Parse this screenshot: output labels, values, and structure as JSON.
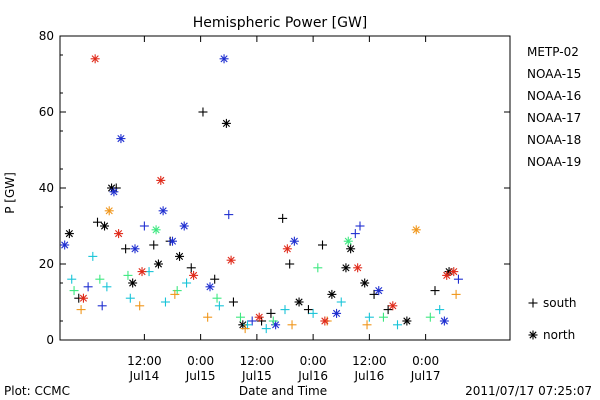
{
  "chart_data": {
    "type": "scatter",
    "title": "Hemispheric Power [GW]",
    "ylabel": "P [GW]",
    "xlabel": "Date and Time",
    "ylim": [
      0,
      80
    ],
    "yticks": [
      0,
      20,
      40,
      60,
      80
    ],
    "y_tick_labels": [
      "0",
      "20",
      "40",
      "60",
      "80"
    ],
    "xlim": [
      "2011-07-13T18:00",
      "2011-07-17T18:00"
    ],
    "x_ticks": [
      {
        "t": "2011-07-14T12:00",
        "time": "12:00",
        "date": "Jul14"
      },
      {
        "t": "2011-07-15T00:00",
        "time": "0:00",
        "date": "Jul15"
      },
      {
        "t": "2011-07-15T12:00",
        "time": "12:00",
        "date": "Jul15"
      },
      {
        "t": "2011-07-16T00:00",
        "time": "0:00",
        "date": "Jul16"
      },
      {
        "t": "2011-07-16T12:00",
        "time": "12:00",
        "date": "Jul16"
      },
      {
        "t": "2011-07-17T00:00",
        "time": "0:00",
        "date": "Jul17"
      }
    ],
    "grid": false,
    "legend_position": "right",
    "marker_legend": [
      {
        "symbol": "+",
        "label": "south"
      },
      {
        "symbol": "*",
        "label": "north"
      }
    ],
    "footer_left": "Plot: CCMC",
    "footer_right": "2011/07/17 07:25:07",
    "series": [
      {
        "name": "METP-02",
        "color": "#000000",
        "points": [
          {
            "t": "2011-07-13T20:00",
            "v": 28,
            "m": "*"
          },
          {
            "t": "2011-07-13T22:00",
            "v": 11,
            "m": "+"
          },
          {
            "t": "2011-07-14T02:00",
            "v": 31,
            "m": "+"
          },
          {
            "t": "2011-07-14T03:30",
            "v": 30,
            "m": "*"
          },
          {
            "t": "2011-07-14T05:00",
            "v": 40,
            "m": "*"
          },
          {
            "t": "2011-07-14T06:00",
            "v": 40,
            "m": "+"
          },
          {
            "t": "2011-07-14T08:00",
            "v": 24,
            "m": "+"
          },
          {
            "t": "2011-07-14T09:30",
            "v": 15,
            "m": "*"
          },
          {
            "t": "2011-07-14T14:00",
            "v": 25,
            "m": "+"
          },
          {
            "t": "2011-07-14T15:00",
            "v": 20,
            "m": "*"
          },
          {
            "t": "2011-07-14T17:30",
            "v": 26,
            "m": "+"
          },
          {
            "t": "2011-07-14T19:30",
            "v": 22,
            "m": "*"
          },
          {
            "t": "2011-07-14T22:00",
            "v": 19,
            "m": "+"
          },
          {
            "t": "2011-07-15T00:30",
            "v": 60,
            "m": "+"
          },
          {
            "t": "2011-07-15T03:00",
            "v": 16,
            "m": "+"
          },
          {
            "t": "2011-07-15T05:30",
            "v": 57,
            "m": "*"
          },
          {
            "t": "2011-07-15T07:00",
            "v": 10,
            "m": "+"
          },
          {
            "t": "2011-07-15T09:00",
            "v": 4,
            "m": "*"
          },
          {
            "t": "2011-07-15T13:00",
            "v": 5,
            "m": "+"
          },
          {
            "t": "2011-07-15T15:00",
            "v": 7,
            "m": "+"
          },
          {
            "t": "2011-07-15T17:30",
            "v": 32,
            "m": "+"
          },
          {
            "t": "2011-07-15T19:00",
            "v": 20,
            "m": "+"
          },
          {
            "t": "2011-07-15T21:00",
            "v": 10,
            "m": "*"
          },
          {
            "t": "2011-07-15T23:00",
            "v": 8,
            "m": "+"
          },
          {
            "t": "2011-07-16T02:00",
            "v": 25,
            "m": "+"
          },
          {
            "t": "2011-07-16T04:00",
            "v": 12,
            "m": "*"
          },
          {
            "t": "2011-07-16T07:00",
            "v": 19,
            "m": "*"
          },
          {
            "t": "2011-07-16T08:00",
            "v": 24,
            "m": "*"
          },
          {
            "t": "2011-07-16T11:00",
            "v": 15,
            "m": "*"
          },
          {
            "t": "2011-07-16T13:00",
            "v": 12,
            "m": "+"
          },
          {
            "t": "2011-07-16T16:00",
            "v": 8,
            "m": "+"
          },
          {
            "t": "2011-07-16T20:00",
            "v": 5,
            "m": "*"
          },
          {
            "t": "2011-07-17T02:00",
            "v": 13,
            "m": "+"
          },
          {
            "t": "2011-07-17T05:00",
            "v": 18,
            "m": "*"
          }
        ]
      },
      {
        "name": "NOAA-15",
        "color": "#1f2fd0",
        "points": [
          {
            "t": "2011-07-13T19:00",
            "v": 25,
            "m": "*"
          },
          {
            "t": "2011-07-14T00:00",
            "v": 14,
            "m": "+"
          },
          {
            "t": "2011-07-14T03:00",
            "v": 9,
            "m": "+"
          },
          {
            "t": "2011-07-14T05:30",
            "v": 39,
            "m": "*"
          },
          {
            "t": "2011-07-14T07:00",
            "v": 53,
            "m": "*"
          },
          {
            "t": "2011-07-14T10:00",
            "v": 24,
            "m": "*"
          },
          {
            "t": "2011-07-14T12:00",
            "v": 30,
            "m": "+"
          },
          {
            "t": "2011-07-14T16:00",
            "v": 34,
            "m": "*"
          },
          {
            "t": "2011-07-14T18:00",
            "v": 26,
            "m": "*"
          },
          {
            "t": "2011-07-14T20:30",
            "v": 30,
            "m": "*"
          },
          {
            "t": "2011-07-15T02:00",
            "v": 14,
            "m": "*"
          },
          {
            "t": "2011-07-15T05:00",
            "v": 74,
            "m": "*"
          },
          {
            "t": "2011-07-15T06:00",
            "v": 33,
            "m": "+"
          },
          {
            "t": "2011-07-15T11:00",
            "v": 5,
            "m": "+"
          },
          {
            "t": "2011-07-15T16:00",
            "v": 4,
            "m": "*"
          },
          {
            "t": "2011-07-15T20:00",
            "v": 26,
            "m": "*"
          },
          {
            "t": "2011-07-16T05:00",
            "v": 7,
            "m": "*"
          },
          {
            "t": "2011-07-16T09:00",
            "v": 28,
            "m": "+"
          },
          {
            "t": "2011-07-16T10:00",
            "v": 30,
            "m": "+"
          },
          {
            "t": "2011-07-16T14:00",
            "v": 13,
            "m": "*"
          },
          {
            "t": "2011-07-17T04:00",
            "v": 5,
            "m": "*"
          },
          {
            "t": "2011-07-17T07:00",
            "v": 16,
            "m": "+"
          }
        ]
      },
      {
        "name": "NOAA-16",
        "color": "#18c4d8",
        "points": [
          {
            "t": "2011-07-13T20:30",
            "v": 16,
            "m": "+"
          },
          {
            "t": "2011-07-14T01:00",
            "v": 22,
            "m": "+"
          },
          {
            "t": "2011-07-14T04:00",
            "v": 14,
            "m": "+"
          },
          {
            "t": "2011-07-14T09:00",
            "v": 11,
            "m": "+"
          },
          {
            "t": "2011-07-14T13:00",
            "v": 18,
            "m": "+"
          },
          {
            "t": "2011-07-14T16:30",
            "v": 10,
            "m": "+"
          },
          {
            "t": "2011-07-14T21:00",
            "v": 15,
            "m": "+"
          },
          {
            "t": "2011-07-15T04:00",
            "v": 9,
            "m": "+"
          },
          {
            "t": "2011-07-15T10:00",
            "v": 4,
            "m": "+"
          },
          {
            "t": "2011-07-15T14:00",
            "v": 3,
            "m": "+"
          },
          {
            "t": "2011-07-15T18:00",
            "v": 8,
            "m": "+"
          },
          {
            "t": "2011-07-16T00:00",
            "v": 7,
            "m": "+"
          },
          {
            "t": "2011-07-16T06:00",
            "v": 10,
            "m": "+"
          },
          {
            "t": "2011-07-16T12:00",
            "v": 6,
            "m": "+"
          },
          {
            "t": "2011-07-16T18:00",
            "v": 4,
            "m": "+"
          },
          {
            "t": "2011-07-17T03:00",
            "v": 8,
            "m": "+"
          }
        ]
      },
      {
        "name": "NOAA-17",
        "color": "#3de880",
        "points": [
          {
            "t": "2011-07-13T21:00",
            "v": 13,
            "m": "+"
          },
          {
            "t": "2011-07-14T02:30",
            "v": 16,
            "m": "+"
          },
          {
            "t": "2011-07-14T08:30",
            "v": 17,
            "m": "+"
          },
          {
            "t": "2011-07-14T14:30",
            "v": 29,
            "m": "*"
          },
          {
            "t": "2011-07-14T19:00",
            "v": 13,
            "m": "+"
          },
          {
            "t": "2011-07-15T03:30",
            "v": 11,
            "m": "+"
          },
          {
            "t": "2011-07-15T08:30",
            "v": 6,
            "m": "+"
          },
          {
            "t": "2011-07-15T15:30",
            "v": 5,
            "m": "+"
          },
          {
            "t": "2011-07-16T01:00",
            "v": 19,
            "m": "+"
          },
          {
            "t": "2011-07-16T07:30",
            "v": 26,
            "m": "*"
          },
          {
            "t": "2011-07-16T15:00",
            "v": 6,
            "m": "+"
          },
          {
            "t": "2011-07-17T01:00",
            "v": 6,
            "m": "+"
          }
        ]
      },
      {
        "name": "NOAA-18",
        "color": "#f0961a",
        "points": [
          {
            "t": "2011-07-13T22:30",
            "v": 8,
            "m": "+"
          },
          {
            "t": "2011-07-14T04:30",
            "v": 34,
            "m": "*"
          },
          {
            "t": "2011-07-14T11:00",
            "v": 9,
            "m": "+"
          },
          {
            "t": "2011-07-14T18:30",
            "v": 12,
            "m": "+"
          },
          {
            "t": "2011-07-15T01:30",
            "v": 6,
            "m": "+"
          },
          {
            "t": "2011-07-15T09:30",
            "v": 3,
            "m": "+"
          },
          {
            "t": "2011-07-15T19:30",
            "v": 4,
            "m": "+"
          },
          {
            "t": "2011-07-16T03:00",
            "v": 5,
            "m": "+"
          },
          {
            "t": "2011-07-16T11:30",
            "v": 4,
            "m": "+"
          },
          {
            "t": "2011-07-16T22:00",
            "v": 29,
            "m": "*"
          },
          {
            "t": "2011-07-17T06:30",
            "v": 12,
            "m": "+"
          }
        ]
      },
      {
        "name": "NOAA-19",
        "color": "#e02a1a",
        "points": [
          {
            "t": "2011-07-13T23:00",
            "v": 11,
            "m": "*"
          },
          {
            "t": "2011-07-14T01:30",
            "v": 74,
            "m": "*"
          },
          {
            "t": "2011-07-14T06:30",
            "v": 28,
            "m": "*"
          },
          {
            "t": "2011-07-14T11:30",
            "v": 18,
            "m": "*"
          },
          {
            "t": "2011-07-14T15:30",
            "v": 42,
            "m": "*"
          },
          {
            "t": "2011-07-14T22:30",
            "v": 17,
            "m": "*"
          },
          {
            "t": "2011-07-15T06:30",
            "v": 21,
            "m": "*"
          },
          {
            "t": "2011-07-15T12:30",
            "v": 6,
            "m": "*"
          },
          {
            "t": "2011-07-15T18:30",
            "v": 24,
            "m": "*"
          },
          {
            "t": "2011-07-16T02:30",
            "v": 5,
            "m": "*"
          },
          {
            "t": "2011-07-16T09:30",
            "v": 19,
            "m": "*"
          },
          {
            "t": "2011-07-16T17:00",
            "v": 9,
            "m": "*"
          },
          {
            "t": "2011-07-17T04:30",
            "v": 17,
            "m": "*"
          },
          {
            "t": "2011-07-17T06:00",
            "v": 18,
            "m": "*"
          }
        ]
      }
    ]
  }
}
